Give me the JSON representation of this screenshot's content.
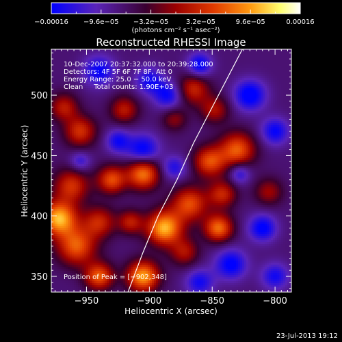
{
  "chart_data": {
    "type": "heatmap",
    "title": "Reconstructed RHESSI Image",
    "xlabel": "Heliocentric X (arcsec)",
    "ylabel": "Heliocentric Y (arcsec)",
    "xlim": [
      -978,
      -787
    ],
    "ylim": [
      337,
      538
    ],
    "x_ticks": [
      -950,
      -900,
      -850,
      -800
    ],
    "x_tick_labels": [
      "−950",
      "−900",
      "−850",
      "−800"
    ],
    "y_ticks": [
      350,
      400,
      450,
      500
    ],
    "y_tick_labels": [
      "350",
      "400",
      "450",
      "500"
    ],
    "colorbar": {
      "colormap": [
        "#0000ff",
        "#5a24b8",
        "#3a0030",
        "#9b0000",
        "#e03a00",
        "#ff9a10",
        "#ffff70",
        "#ffffff"
      ],
      "range": [
        -0.00016,
        0.00016
      ],
      "tick_labels": [
        "−0.00016",
        "−9.6e−05",
        "−3.2e−05",
        "3.2e−05",
        "9.6e−05",
        "0.00016"
      ],
      "unit_label": "(photons cm⁻² s⁻¹ asec⁻²)"
    },
    "annotations": [
      "10‐Dec‐2007 20:37:32.000 to 20:39:28.000",
      "Detectors: 4F 5F 6F 7F 8F, Att 0",
      "Energy Range: 25.0 − 50.0 keV",
      "Clean     Total counts: 1.90E+03"
    ],
    "peak_label": "Position of Peak = [−902,348]",
    "limb": [
      [
        -917,
        337
      ],
      [
        -905,
        370
      ],
      [
        -893,
        400
      ],
      [
        -878,
        430
      ],
      [
        -865,
        460
      ],
      [
        -850,
        490
      ],
      [
        -835,
        520
      ],
      [
        -826,
        538
      ]
    ],
    "sources": [
      {
        "x": -972,
        "y": 398,
        "amp": 1.0,
        "sigma": 10
      },
      {
        "x": -958,
        "y": 375,
        "amp": 0.75,
        "sigma": 11
      },
      {
        "x": -962,
        "y": 425,
        "amp": 0.6,
        "sigma": 10
      },
      {
        "x": -940,
        "y": 395,
        "amp": 0.55,
        "sigma": 9
      },
      {
        "x": -930,
        "y": 430,
        "amp": 0.7,
        "sigma": 8
      },
      {
        "x": -905,
        "y": 435,
        "amp": 0.85,
        "sigma": 9
      },
      {
        "x": -915,
        "y": 395,
        "amp": 0.5,
        "sigma": 7
      },
      {
        "x": -888,
        "y": 390,
        "amp": 1.0,
        "sigma": 10
      },
      {
        "x": -905,
        "y": 350,
        "amp": 0.95,
        "sigma": 9
      },
      {
        "x": -940,
        "y": 350,
        "amp": 0.75,
        "sigma": 8
      },
      {
        "x": -955,
        "y": 470,
        "amp": 0.6,
        "sigma": 9
      },
      {
        "x": -968,
        "y": 490,
        "amp": 0.5,
        "sigma": 8
      },
      {
        "x": -920,
        "y": 488,
        "amp": 0.5,
        "sigma": 8
      },
      {
        "x": -868,
        "y": 410,
        "amp": 0.7,
        "sigma": 10
      },
      {
        "x": -852,
        "y": 445,
        "amp": 0.7,
        "sigma": 9
      },
      {
        "x": -842,
        "y": 418,
        "amp": 0.55,
        "sigma": 8
      },
      {
        "x": -830,
        "y": 455,
        "amp": 0.75,
        "sigma": 10
      },
      {
        "x": -845,
        "y": 390,
        "amp": 0.8,
        "sigma": 8
      },
      {
        "x": -872,
        "y": 370,
        "amp": 0.45,
        "sigma": 8
      },
      {
        "x": -865,
        "y": 505,
        "amp": 0.55,
        "sigma": 9
      },
      {
        "x": -848,
        "y": 488,
        "amp": 0.45,
        "sigma": 8
      },
      {
        "x": -805,
        "y": 420,
        "amp": 0.4,
        "sigma": 8
      },
      {
        "x": -880,
        "y": 480,
        "amp": 0.35,
        "sigma": 7
      },
      {
        "x": -940,
        "y": 520,
        "amp": -0.5,
        "sigma": 9
      },
      {
        "x": -905,
        "y": 455,
        "amp": -0.55,
        "sigma": 9
      },
      {
        "x": -900,
        "y": 512,
        "amp": -0.45,
        "sigma": 8
      },
      {
        "x": -885,
        "y": 500,
        "amp": -0.5,
        "sigma": 8
      },
      {
        "x": -860,
        "y": 525,
        "amp": -0.55,
        "sigma": 7
      },
      {
        "x": -820,
        "y": 500,
        "amp": -0.6,
        "sigma": 9
      },
      {
        "x": -800,
        "y": 470,
        "amp": -0.5,
        "sigma": 8
      },
      {
        "x": -810,
        "y": 390,
        "amp": -0.55,
        "sigma": 8
      },
      {
        "x": -800,
        "y": 350,
        "amp": -0.45,
        "sigma": 8
      },
      {
        "x": -835,
        "y": 360,
        "amp": -0.55,
        "sigma": 9
      },
      {
        "x": -860,
        "y": 345,
        "amp": -0.45,
        "sigma": 8
      },
      {
        "x": -955,
        "y": 445,
        "amp": -0.35,
        "sigma": 6
      },
      {
        "x": -925,
        "y": 462,
        "amp": -0.45,
        "sigma": 7
      },
      {
        "x": -880,
        "y": 440,
        "amp": -0.4,
        "sigma": 7
      },
      {
        "x": -828,
        "y": 435,
        "amp": -0.4,
        "sigma": 6
      }
    ]
  },
  "footer": {
    "date": "23‐Jul‐2013 19:12"
  }
}
